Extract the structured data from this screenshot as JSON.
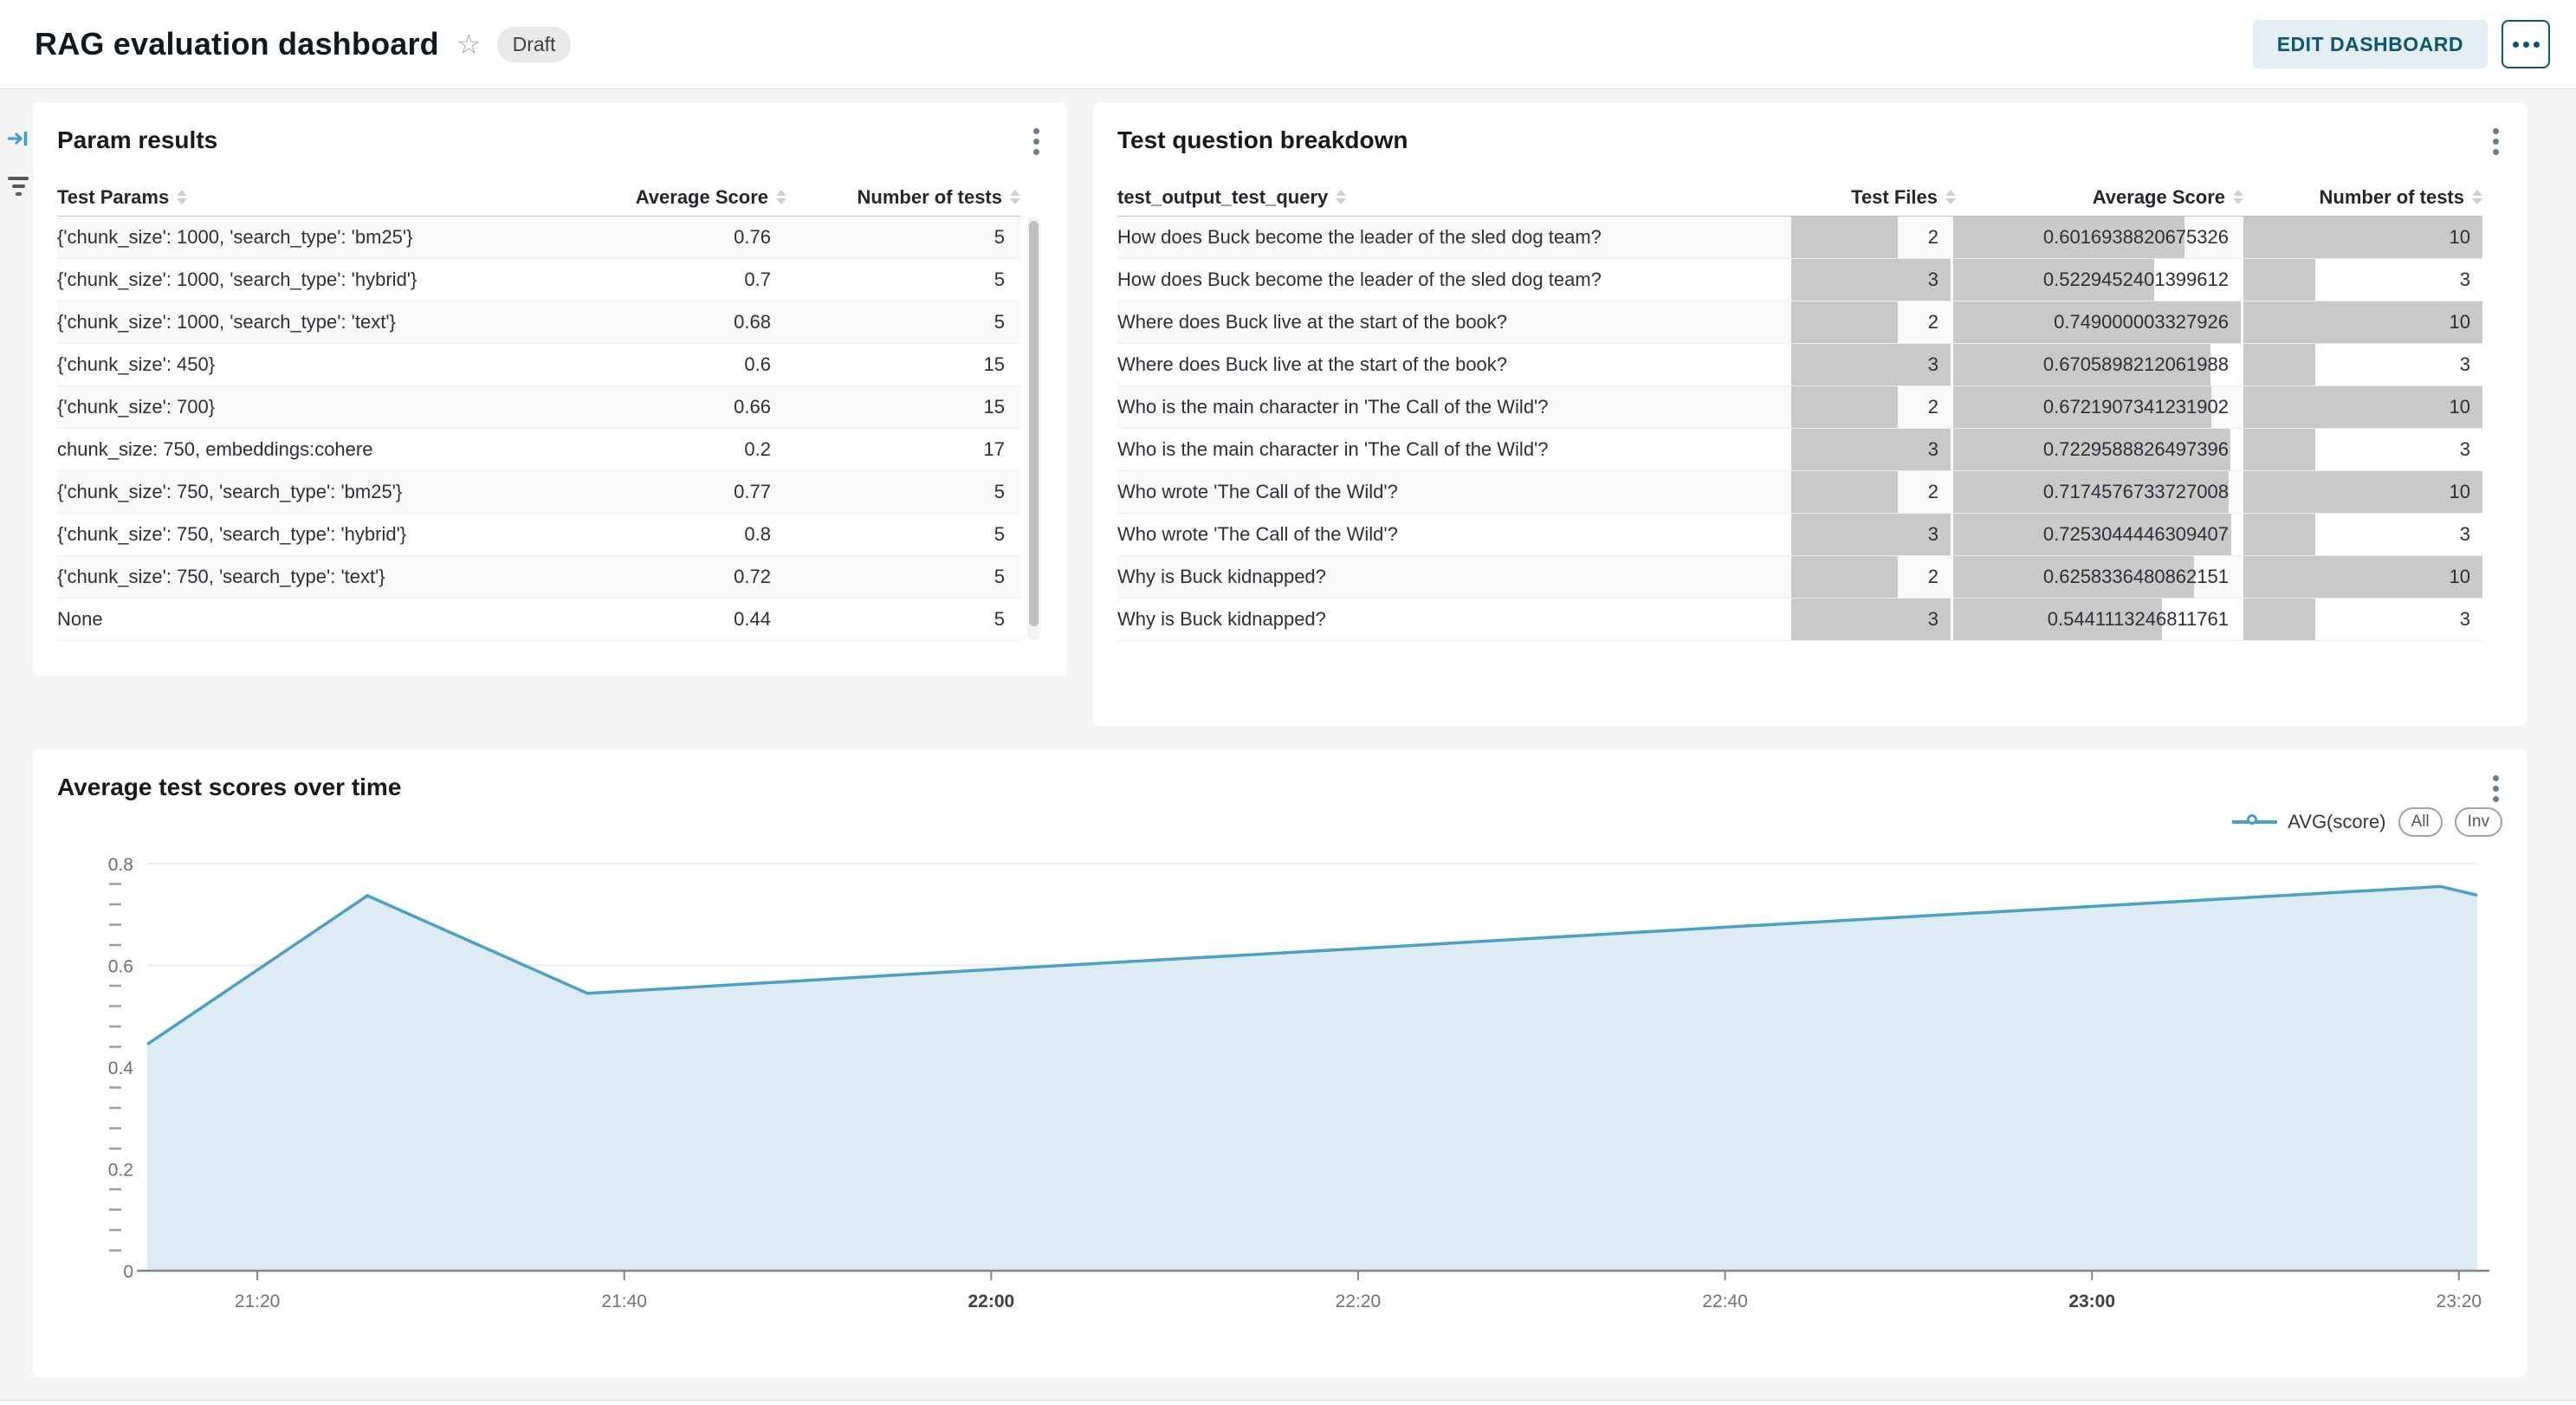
{
  "header": {
    "title": "RAG evaluation dashboard",
    "status_badge": "Draft",
    "edit_button": "EDIT DASHBOARD"
  },
  "side_toolbar": {
    "collapse_icon": "collapse-right",
    "filter_icon": "filter"
  },
  "param_results": {
    "title": "Param results",
    "columns": [
      "Test Params",
      "Average Score",
      "Number of tests"
    ],
    "rows": [
      [
        "{'chunk_size': 1000, 'search_type': 'bm25'}",
        "0.76",
        "5"
      ],
      [
        "{'chunk_size': 1000, 'search_type': 'hybrid'}",
        "0.7",
        "5"
      ],
      [
        "{'chunk_size': 1000, 'search_type': 'text'}",
        "0.68",
        "5"
      ],
      [
        "{'chunk_size': 450}",
        "0.6",
        "15"
      ],
      [
        "{'chunk_size': 700}",
        "0.66",
        "15"
      ],
      [
        "chunk_size: 750, embeddings:cohere",
        "0.2",
        "17"
      ],
      [
        "{'chunk_size': 750, 'search_type': 'bm25'}",
        "0.77",
        "5"
      ],
      [
        "{'chunk_size': 750, 'search_type': 'hybrid'}",
        "0.8",
        "5"
      ],
      [
        "{'chunk_size': 750, 'search_type': 'text'}",
        "0.72",
        "5"
      ],
      [
        "None",
        "0.44",
        "5"
      ]
    ]
  },
  "question_breakdown": {
    "title": "Test question breakdown",
    "columns": [
      "test_output_test_query",
      "Test Files",
      "Average Score",
      "Number of tests"
    ],
    "rows": [
      {
        "query": "How does Buck become the leader of the sled dog team?",
        "files": 2,
        "score": "0.6016938820675326",
        "tests": 10
      },
      {
        "query": "How does Buck become the leader of the sled dog team?",
        "files": 3,
        "score": "0.5229452401399612",
        "tests": 3
      },
      {
        "query": "Where does Buck live at the start of the book?",
        "files": 2,
        "score": "0.749000003327926",
        "tests": 10
      },
      {
        "query": "Where does Buck live at the start of the book?",
        "files": 3,
        "score": "0.6705898212061988",
        "tests": 3
      },
      {
        "query": "Who is the main character in 'The Call of the Wild'?",
        "files": 2,
        "score": "0.6721907341231902",
        "tests": 10
      },
      {
        "query": "Who is the main character in 'The Call of the Wild'?",
        "files": 3,
        "score": "0.7229588826497396",
        "tests": 3
      },
      {
        "query": "Who wrote 'The Call of the Wild'?",
        "files": 2,
        "score": "0.7174576733727008",
        "tests": 10
      },
      {
        "query": "Who wrote 'The Call of the Wild'?",
        "files": 3,
        "score": "0.7253044446309407",
        "tests": 3
      },
      {
        "query": "Why is Buck kidnapped?",
        "files": 2,
        "score": "0.6258336480862151",
        "tests": 10
      },
      {
        "query": "Why is Buck kidnapped?",
        "files": 3,
        "score": "0.5441113246811761",
        "tests": 3
      }
    ],
    "bar_max": {
      "files": 3,
      "score": 0.749000003327926,
      "tests": 10
    },
    "bar_color": "#c9c9c9"
  },
  "chart_panel": {
    "title": "Average test scores over time",
    "legend_series": "AVG(score)",
    "legend_buttons": [
      "All",
      "Inv"
    ]
  },
  "chart_data": {
    "type": "area",
    "title": "Average test scores over time",
    "series": [
      {
        "name": "AVG(score)",
        "points": [
          [
            "21:14",
            0.445
          ],
          [
            "21:26",
            0.737
          ],
          [
            "21:38",
            0.545
          ],
          [
            "22:00",
            0.592
          ],
          [
            "22:20",
            0.633
          ],
          [
            "22:40",
            0.675
          ],
          [
            "23:00",
            0.716
          ],
          [
            "23:19",
            0.755
          ],
          [
            "23:21",
            0.738
          ]
        ]
      }
    ],
    "x_ticks": [
      {
        "label": "21:20",
        "bold": false
      },
      {
        "label": "21:40",
        "bold": false
      },
      {
        "label": "22:00",
        "bold": true
      },
      {
        "label": "22:20",
        "bold": false
      },
      {
        "label": "22:40",
        "bold": false
      },
      {
        "label": "23:00",
        "bold": true
      },
      {
        "label": "23:20",
        "bold": false
      }
    ],
    "x_domain": [
      "21:14",
      "23:21"
    ],
    "y_ticks": [
      0,
      0.2,
      0.4,
      0.6,
      0.8
    ],
    "ylim": [
      0,
      0.8
    ],
    "minor_tick_step": 0.04,
    "grid": true,
    "legend_position": "top-right",
    "line_color": "#4aa0c6",
    "area_color": "#dcebf4"
  }
}
